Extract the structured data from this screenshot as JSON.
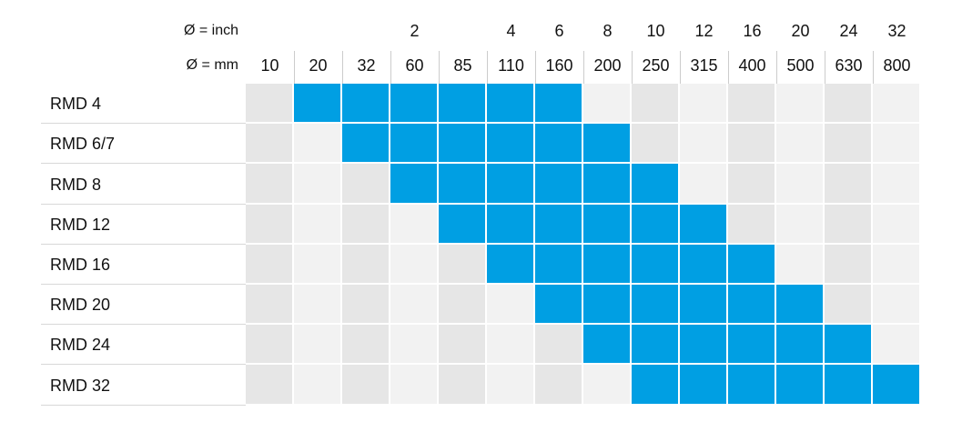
{
  "header": {
    "inch_label": "Ø = inch",
    "mm_label": "Ø = mm",
    "inch": [
      null,
      null,
      null,
      "2",
      null,
      "4",
      "6",
      "8",
      "10",
      "12",
      "16",
      "20",
      "24",
      "32"
    ],
    "mm": [
      "10",
      "20",
      "32",
      "60",
      "85",
      "110",
      "160",
      "200",
      "250",
      "315",
      "400",
      "500",
      "630",
      "800"
    ]
  },
  "colors": {
    "filled": "#009fe3",
    "even": "#e6e6e6",
    "odd": "#f2f2f2"
  },
  "rows": [
    {
      "label": "RMD 4",
      "filled": [
        false,
        true,
        true,
        true,
        true,
        true,
        true,
        false,
        false,
        false,
        false,
        false,
        false,
        false
      ]
    },
    {
      "label": "RMD 6/7",
      "filled": [
        false,
        false,
        true,
        true,
        true,
        true,
        true,
        true,
        false,
        false,
        false,
        false,
        false,
        false
      ]
    },
    {
      "label": "RMD 8",
      "filled": [
        false,
        false,
        false,
        true,
        true,
        true,
        true,
        true,
        true,
        false,
        false,
        false,
        false,
        false
      ]
    },
    {
      "label": "RMD 12",
      "filled": [
        false,
        false,
        false,
        false,
        true,
        true,
        true,
        true,
        true,
        true,
        false,
        false,
        false,
        false
      ]
    },
    {
      "label": "RMD 16",
      "filled": [
        false,
        false,
        false,
        false,
        false,
        true,
        true,
        true,
        true,
        true,
        true,
        false,
        false,
        false
      ]
    },
    {
      "label": "RMD 20",
      "filled": [
        false,
        false,
        false,
        false,
        false,
        false,
        true,
        true,
        true,
        true,
        true,
        true,
        false,
        false
      ]
    },
    {
      "label": "RMD 24",
      "filled": [
        false,
        false,
        false,
        false,
        false,
        false,
        false,
        true,
        true,
        true,
        true,
        true,
        true,
        false
      ]
    },
    {
      "label": "RMD 32",
      "filled": [
        false,
        false,
        false,
        false,
        false,
        false,
        false,
        false,
        true,
        true,
        true,
        true,
        true,
        true
      ]
    }
  ]
}
